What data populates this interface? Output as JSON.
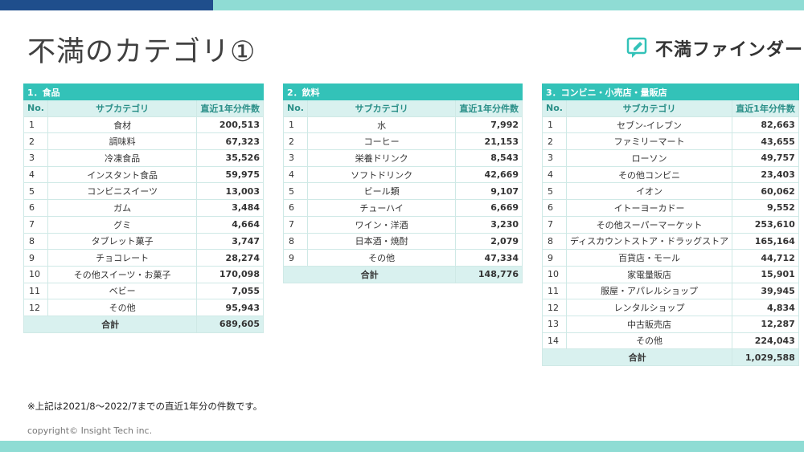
{
  "title": "不満のカテゴリ①",
  "logo": {
    "text": "不満ファインダー"
  },
  "column_headers": {
    "no": "No.",
    "sub": "サブカテゴリ",
    "count": "直近1年分件数"
  },
  "tables": [
    {
      "heading": "1．食品",
      "rows": [
        {
          "no": "1",
          "name": "食材",
          "count": "200,513"
        },
        {
          "no": "2",
          "name": "調味料",
          "count": "67,323"
        },
        {
          "no": "3",
          "name": "冷凍食品",
          "count": "35,526"
        },
        {
          "no": "4",
          "name": "インスタント食品",
          "count": "59,975"
        },
        {
          "no": "5",
          "name": "コンビニスイーツ",
          "count": "13,003"
        },
        {
          "no": "6",
          "name": "ガム",
          "count": "3,484"
        },
        {
          "no": "7",
          "name": "グミ",
          "count": "4,664"
        },
        {
          "no": "8",
          "name": "タブレット菓子",
          "count": "3,747"
        },
        {
          "no": "9",
          "name": "チョコレート",
          "count": "28,274"
        },
        {
          "no": "10",
          "name": "その他スイーツ・お菓子",
          "count": "170,098"
        },
        {
          "no": "11",
          "name": "ベビー",
          "count": "7,055"
        },
        {
          "no": "12",
          "name": "その他",
          "count": "95,943"
        }
      ],
      "total_label": "合計",
      "total": "689,605"
    },
    {
      "heading": "2．飲料",
      "rows": [
        {
          "no": "1",
          "name": "水",
          "count": "7,992"
        },
        {
          "no": "2",
          "name": "コーヒー",
          "count": "21,153"
        },
        {
          "no": "3",
          "name": "栄養ドリンク",
          "count": "8,543"
        },
        {
          "no": "4",
          "name": "ソフトドリンク",
          "count": "42,669"
        },
        {
          "no": "5",
          "name": "ビール類",
          "count": "9,107"
        },
        {
          "no": "6",
          "name": "チューハイ",
          "count": "6,669"
        },
        {
          "no": "7",
          "name": "ワイン・洋酒",
          "count": "3,230"
        },
        {
          "no": "8",
          "name": "日本酒・焼酎",
          "count": "2,079"
        },
        {
          "no": "9",
          "name": "その他",
          "count": "47,334"
        }
      ],
      "total_label": "合計",
      "total": "148,776"
    },
    {
      "heading": "3．コンビニ・小売店・量販店",
      "rows": [
        {
          "no": "1",
          "name": "セブン-イレブン",
          "count": "82,663"
        },
        {
          "no": "2",
          "name": "ファミリーマート",
          "count": "43,655"
        },
        {
          "no": "3",
          "name": "ローソン",
          "count": "49,757"
        },
        {
          "no": "4",
          "name": "その他コンビニ",
          "count": "23,403"
        },
        {
          "no": "5",
          "name": "イオン",
          "count": "60,062"
        },
        {
          "no": "6",
          "name": "イトーヨーカドー",
          "count": "9,552"
        },
        {
          "no": "7",
          "name": "その他スーパーマーケット",
          "count": "253,610"
        },
        {
          "no": "8",
          "name": "ディスカウントストア・ドラッグストア",
          "count": "165,164"
        },
        {
          "no": "9",
          "name": "百貨店・モール",
          "count": "44,712"
        },
        {
          "no": "10",
          "name": "家電量販店",
          "count": "15,901"
        },
        {
          "no": "11",
          "name": "服屋・アパレルショップ",
          "count": "39,945"
        },
        {
          "no": "12",
          "name": "レンタルショップ",
          "count": "4,834"
        },
        {
          "no": "13",
          "name": "中古販売店",
          "count": "12,287"
        },
        {
          "no": "14",
          "name": "その他",
          "count": "224,043"
        }
      ],
      "total_label": "合計",
      "total": "1,029,588"
    }
  ],
  "footnote": "※上記は2021/8～2022/7までの直近1年分の件数です。",
  "copyright": "copyright© Insight Tech inc.",
  "colors": {
    "header_teal": "#33c2b8",
    "subheader_bg": "#d9f1ef",
    "top_navy": "#1f4e8c",
    "top_teal": "#8fdcd4"
  }
}
